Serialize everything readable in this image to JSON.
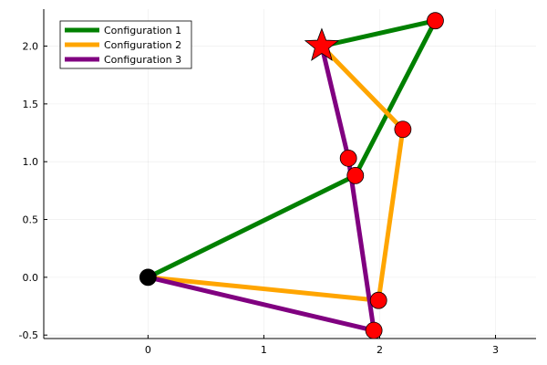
{
  "chart_data": {
    "type": "line",
    "title": "",
    "xlabel": "",
    "ylabel": "",
    "xlim": [
      -0.9,
      3.35
    ],
    "ylim": [
      -0.53,
      2.32
    ],
    "xticks": [
      0,
      1,
      2,
      3
    ],
    "yticks": [
      -0.5,
      0.0,
      0.5,
      1.0,
      1.5,
      2.0
    ],
    "xtick_labels": [
      "0",
      "1",
      "2",
      "3"
    ],
    "ytick_labels": [
      "-0.5",
      "0.0",
      "0.5",
      "1.0",
      "1.5",
      "2.0"
    ],
    "grid": true,
    "legend_position": "top-left",
    "series": [
      {
        "name": "Configuration 1",
        "color": "#008000",
        "x": [
          0,
          1.79,
          2.48,
          1.5
        ],
        "y": [
          0,
          0.88,
          2.22,
          2.0
        ]
      },
      {
        "name": "Configuration 2",
        "color": "#FFA500",
        "x": [
          0,
          1.99,
          2.2,
          1.5
        ],
        "y": [
          0,
          -0.2,
          1.28,
          2.0
        ]
      },
      {
        "name": "Configuration 3",
        "color": "#800080",
        "x": [
          0,
          1.95,
          1.73,
          1.5
        ],
        "y": [
          0,
          -0.46,
          1.03,
          2.0
        ]
      }
    ],
    "joints": [
      {
        "x": 1.79,
        "y": 0.88
      },
      {
        "x": 2.48,
        "y": 2.22
      },
      {
        "x": 1.99,
        "y": -0.2
      },
      {
        "x": 2.2,
        "y": 1.28
      },
      {
        "x": 1.95,
        "y": -0.46
      },
      {
        "x": 1.73,
        "y": 1.03
      }
    ],
    "joint_color": "#FF0000",
    "base": {
      "x": 0,
      "y": 0,
      "color": "#000000"
    },
    "target": {
      "x": 1.5,
      "y": 2.0,
      "color": "#FF0000",
      "marker": "star"
    }
  }
}
